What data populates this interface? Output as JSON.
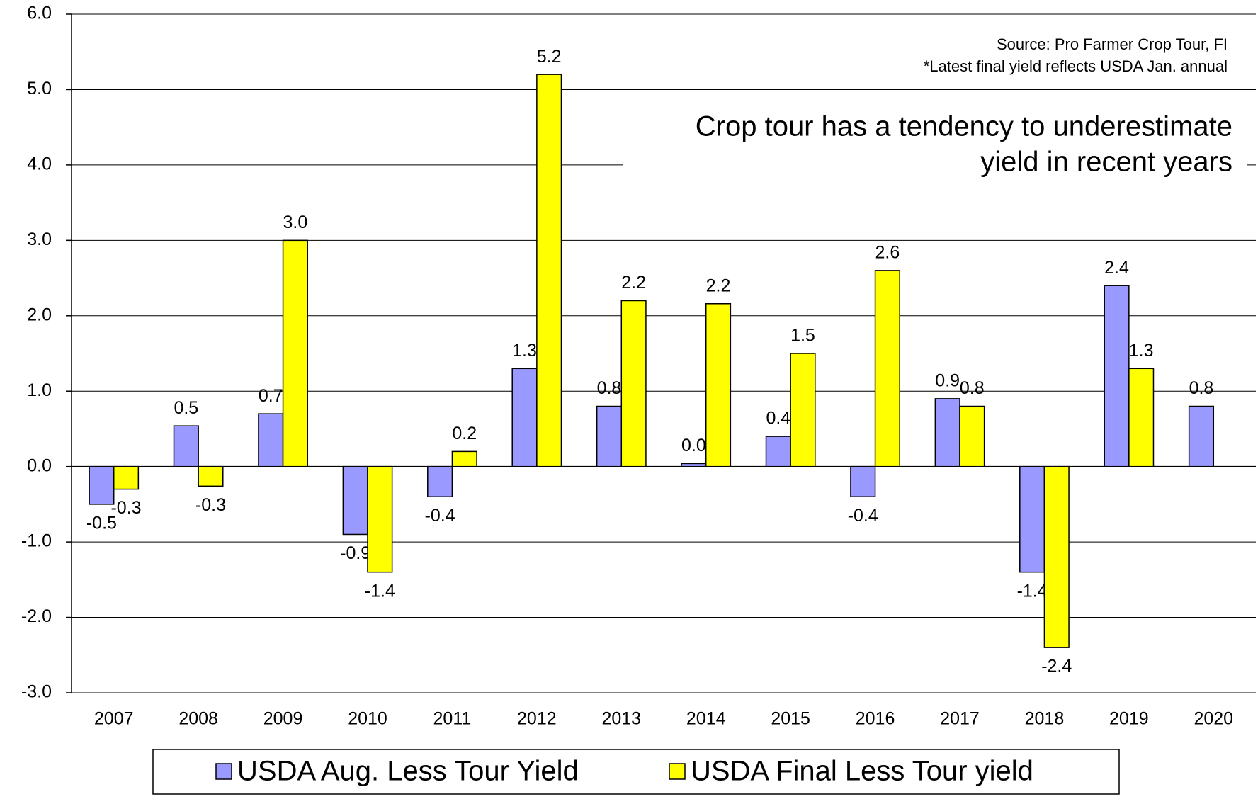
{
  "chart_data": {
    "type": "bar",
    "source": "Source: Pro Farmer Crop Tour, FI",
    "note": "*Latest final yield reflects USDA Jan. annual",
    "annotation": [
      "Crop tour has a tendency to underestimate",
      "yield in recent years"
    ],
    "categories": [
      "2007",
      "2008",
      "2009",
      "2010",
      "2011",
      "2012",
      "2013",
      "2014",
      "2015",
      "2016",
      "2017",
      "2018",
      "2019",
      "2020"
    ],
    "series": [
      {
        "name": "USDA Aug. Less Tour Yield",
        "color": "#9999ff",
        "values": [
          -0.5,
          0.54,
          0.7,
          -0.9,
          -0.4,
          1.3,
          0.8,
          0.04,
          0.4,
          -0.4,
          0.9,
          -1.4,
          2.4,
          0.8
        ],
        "value_labels": [
          "-0.5",
          "0.5",
          "0.7",
          "-0.9",
          "-0.4",
          "1.3",
          "0.8",
          "0.0",
          "0.4",
          "-0.4",
          "0.9",
          "-1.4",
          "2.4",
          "0.8"
        ]
      },
      {
        "name": "USDA Final Less Tour yield",
        "color": "#ffff00",
        "values": [
          -0.3,
          -0.26,
          3.0,
          -1.4,
          0.2,
          5.2,
          2.2,
          2.16,
          1.5,
          2.6,
          0.8,
          -2.4,
          1.3,
          null
        ],
        "value_labels": [
          "-0.3",
          "-0.3",
          "3.0",
          "-1.4",
          "0.2",
          "5.2",
          "2.2",
          "2.2",
          "1.5",
          "2.6",
          "0.8",
          "-2.4",
          "1.3",
          null
        ]
      }
    ],
    "ylim": [
      -3,
      6
    ],
    "yticks": [
      {
        "value": -3,
        "label": "-3.0"
      },
      {
        "value": -2,
        "label": "-2.0"
      },
      {
        "value": -1,
        "label": "-1.0"
      },
      {
        "value": 0,
        "label": "0.0"
      },
      {
        "value": 1,
        "label": "1.0"
      },
      {
        "value": 2,
        "label": "2.0"
      },
      {
        "value": 3,
        "label": "3.0"
      },
      {
        "value": 4,
        "label": "4.0"
      },
      {
        "value": 5,
        "label": "5.0"
      },
      {
        "value": 6,
        "label": "6.0"
      }
    ],
    "grid": true,
    "legend": "bottom"
  }
}
